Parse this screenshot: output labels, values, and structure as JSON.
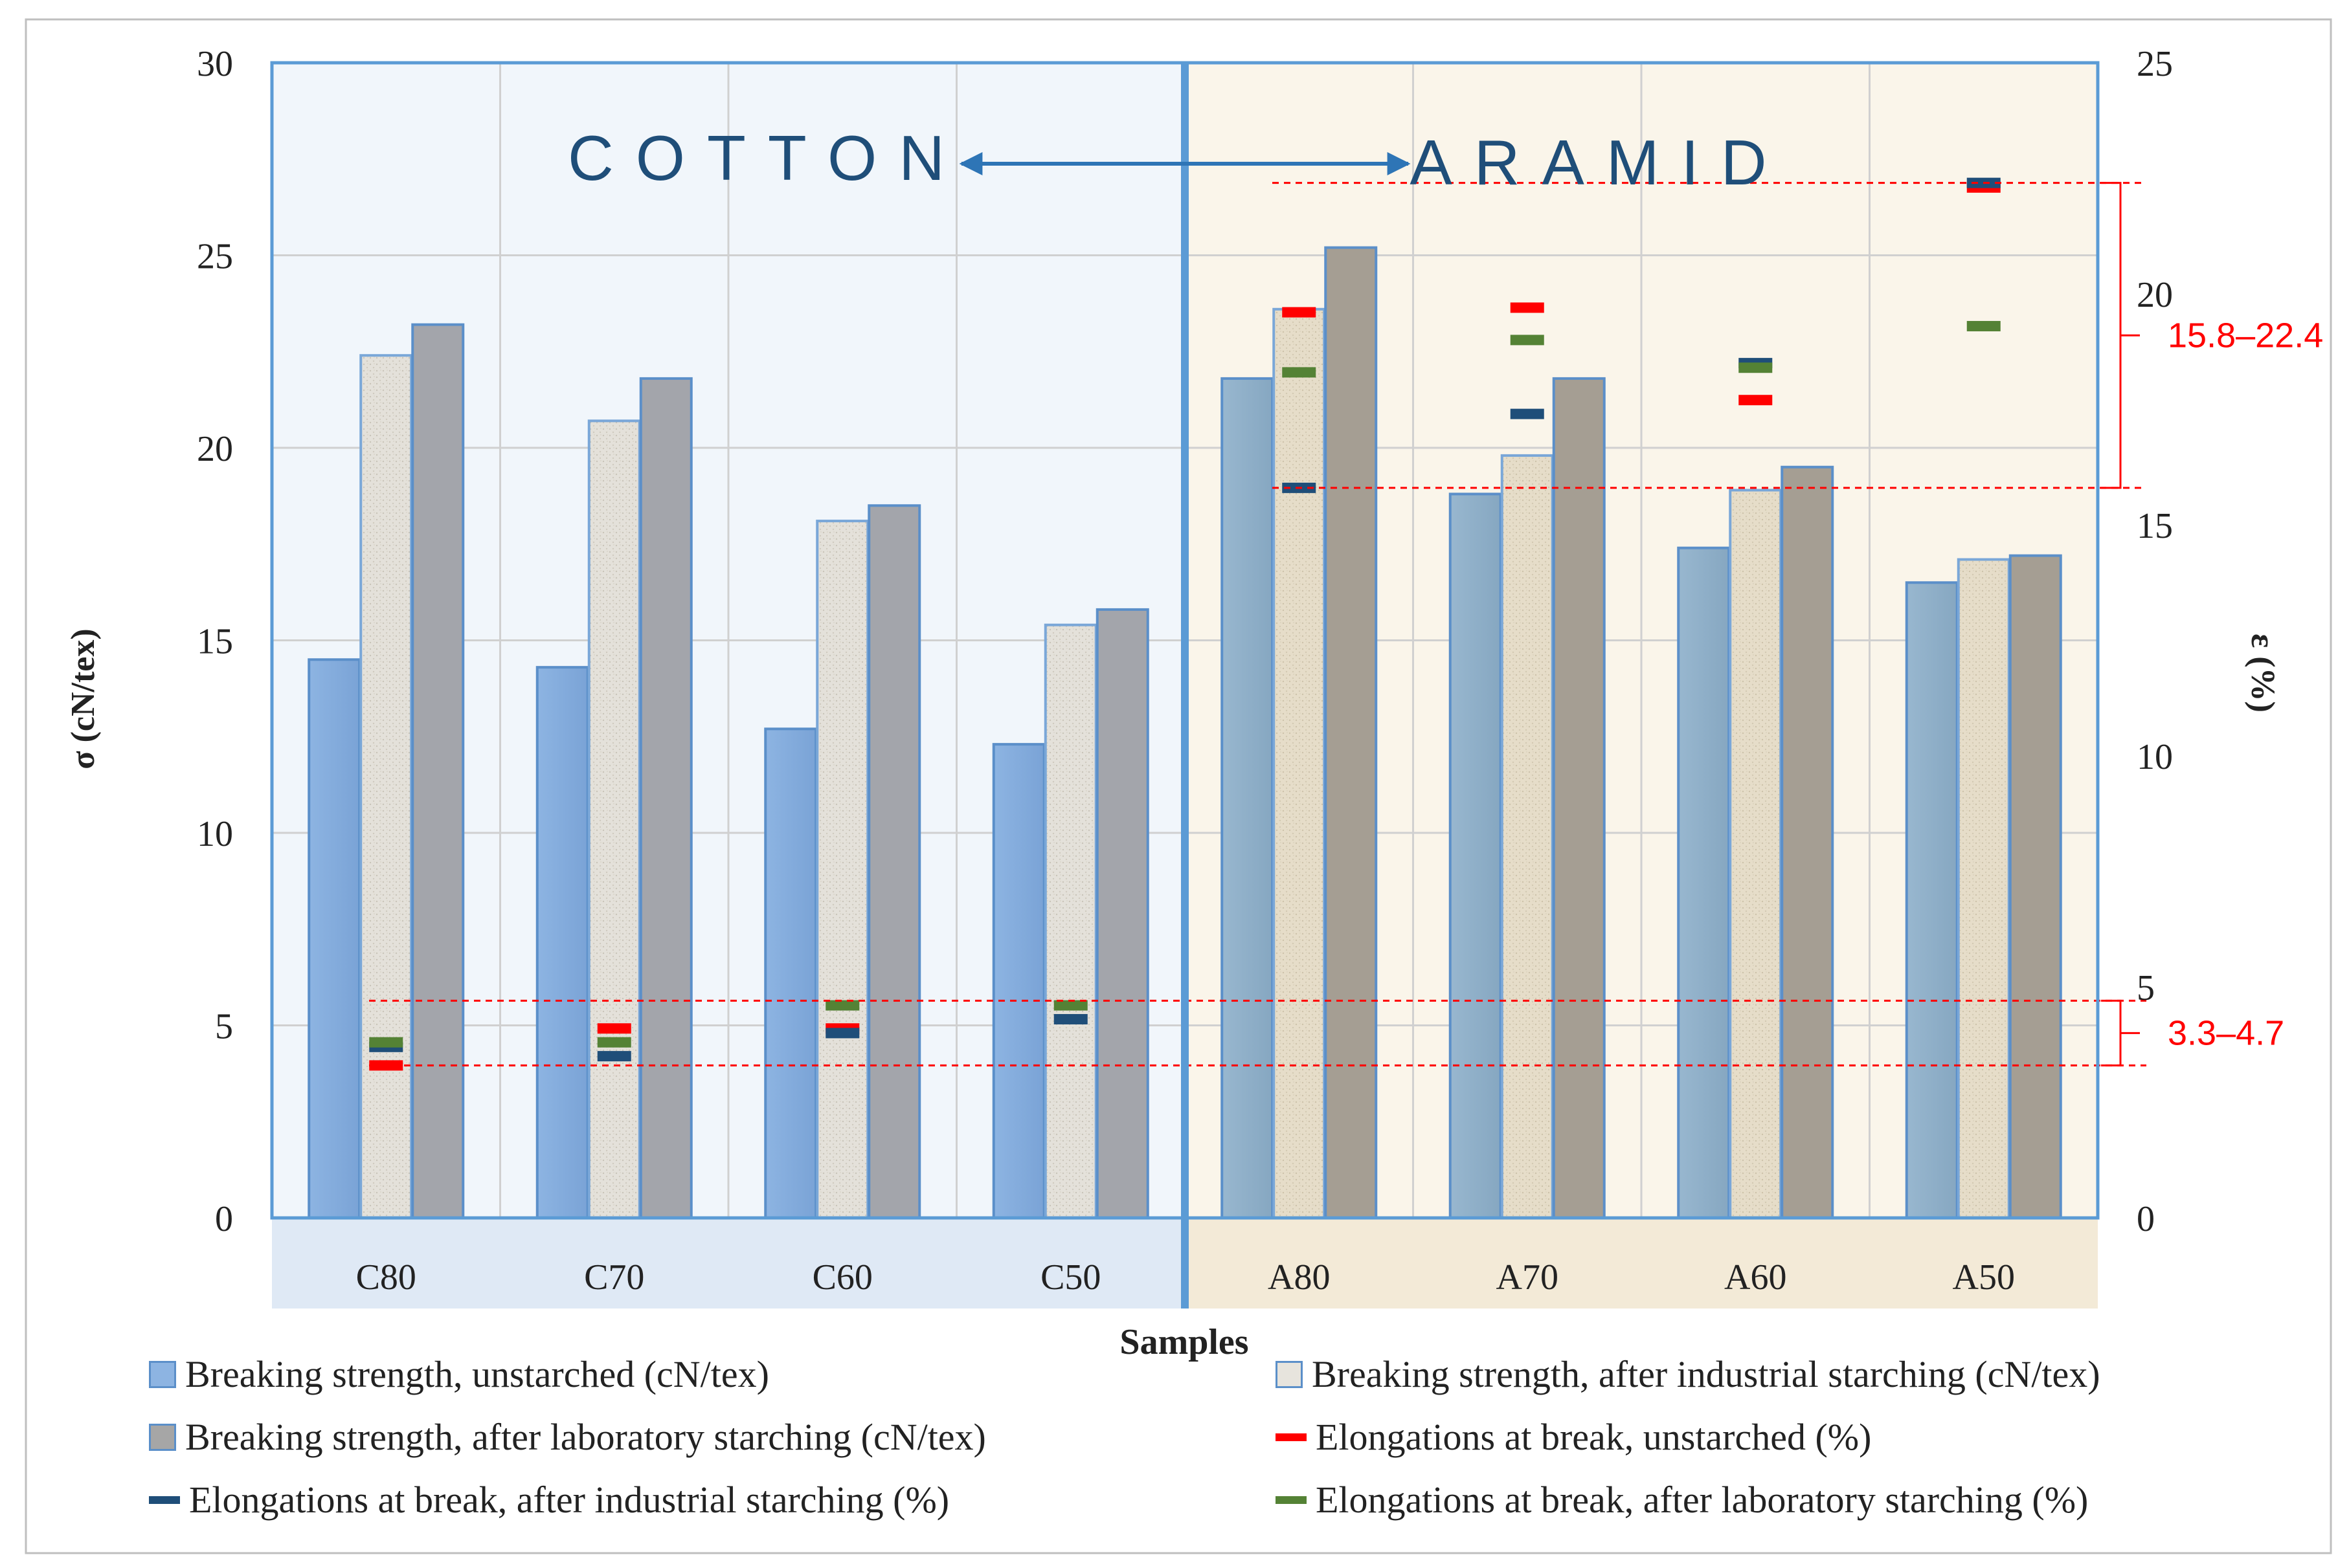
{
  "chart_data": {
    "type": "bar",
    "categories": [
      "C80",
      "C70",
      "C60",
      "C50",
      "A80",
      "A70",
      "A60",
      "A50"
    ],
    "groups": [
      {
        "label": "COTTON",
        "categories": [
          "C80",
          "C70",
          "C60",
          "C50"
        ],
        "color": "#f1f6fb"
      },
      {
        "label": "ARAMID",
        "categories": [
          "A80",
          "A70",
          "A60",
          "A50"
        ],
        "color": "#faf5ea"
      }
    ],
    "series": [
      {
        "name": "Breaking strength, unstarched (cN/tex)",
        "axis": "left",
        "kind": "bar",
        "values": [
          14.5,
          14.3,
          12.7,
          12.3,
          21.8,
          18.8,
          17.4,
          16.5
        ]
      },
      {
        "name": "Breaking strength, after industrial starching (cN/tex)",
        "axis": "left",
        "kind": "bar",
        "values": [
          22.4,
          20.7,
          18.1,
          15.4,
          23.6,
          19.8,
          18.9,
          17.1
        ]
      },
      {
        "name": "Breaking strength, after laboratory starching (cN/tex)",
        "axis": "left",
        "kind": "bar",
        "values": [
          23.2,
          21.8,
          18.5,
          15.8,
          25.2,
          21.8,
          19.5,
          17.2
        ]
      },
      {
        "name": "Elongations at break, unstarched (%)",
        "axis": "right",
        "kind": "marker",
        "color": "#ff0000",
        "values": [
          3.3,
          4.1,
          4.1,
          null,
          19.6,
          19.7,
          17.7,
          22.3
        ]
      },
      {
        "name": "Elongations at break, after industrial starching (%)",
        "axis": "right",
        "kind": "marker",
        "color": "#1f4e79",
        "values": [
          3.7,
          3.5,
          4.0,
          4.3,
          15.8,
          17.4,
          18.5,
          22.4
        ]
      },
      {
        "name": "Elongations at break, after laboratory starching (%)",
        "axis": "right",
        "kind": "marker",
        "color": "#548235",
        "values": [
          3.8,
          3.8,
          4.6,
          4.6,
          18.3,
          19.0,
          18.4,
          19.3
        ]
      }
    ],
    "xlabel": "Samples",
    "ylabel": "σ (cN/tex)",
    "y2label": "ε (%)",
    "ylim": [
      0,
      30
    ],
    "y2lim": [
      0,
      25
    ],
    "yticks": [
      "0",
      "5",
      "10",
      "15",
      "20",
      "25",
      "30"
    ],
    "y2ticks": [
      "0",
      "5",
      "10",
      "15",
      "20",
      "25"
    ],
    "grid": true,
    "legend_position": "bottom",
    "annotations": {
      "cotton_label": "COTTON",
      "aramid_label": "ARAMID",
      "range_aramid": {
        "text": "15.8–22.4",
        "low": 15.8,
        "high": 22.4
      },
      "range_cotton": {
        "text": "3.3–4.7",
        "low": 3.3,
        "high": 4.7
      }
    }
  }
}
